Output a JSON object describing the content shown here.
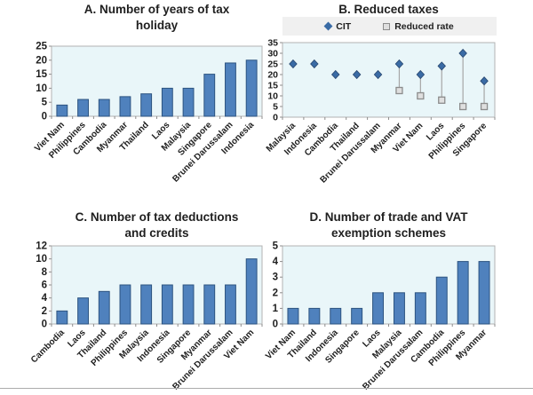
{
  "colors": {
    "bar_fill": "#4F81BD",
    "bar_border": "#2C5380",
    "plot_background": "#E9F6F9",
    "plot_border": "#B3B3B3",
    "tick_color": "#8C8C8C",
    "diamond_marker": "#3A6BA5",
    "diamond_border": "#28466E",
    "square_marker_fill": "#DFDFDF",
    "square_marker_border": "#8C8C8C",
    "connector_line": "#A6A6A6",
    "legend_background": "#F0F0F0",
    "text_color": "#1F1F1F",
    "divider_color": "#ABABAB"
  },
  "chart_data": [
    {
      "type": "bar",
      "panel": "A",
      "title": "A. Number of years of tax holiday",
      "title_lines": [
        "A. Number of years of tax",
        "holiday"
      ],
      "categories": [
        "Viet Nam",
        "Philippines",
        "Cambodia",
        "Myanmar",
        "Thailand",
        "Laos",
        "Malaysia",
        "Singapore",
        "Brunei Darussalam",
        "Indonesia"
      ],
      "values": [
        4,
        6,
        6,
        7,
        8,
        10,
        10,
        15,
        19,
        20
      ],
      "xlabel": "",
      "ylabel": "",
      "ylim": [
        0,
        25
      ],
      "ytick_step": 5,
      "grid": false,
      "legend_position": "none"
    },
    {
      "type": "scatter",
      "panel": "B",
      "title": "B. Reduced taxes",
      "title_lines": [
        "B. Reduced taxes"
      ],
      "categories": [
        "Malaysia",
        "Indonesia",
        "Cambodia",
        "Thailand",
        "Brunei Darussalam",
        "Myanmar",
        "Viet Nam",
        "Laos",
        "Philippines",
        "Singapore"
      ],
      "series": [
        {
          "name": "CIT",
          "marker": "diamond",
          "values": [
            25,
            25,
            20,
            20,
            20,
            25,
            20,
            24,
            30,
            17
          ]
        },
        {
          "name": "Reduced rate",
          "marker": "square",
          "values": [
            null,
            null,
            null,
            null,
            null,
            12.5,
            10,
            8,
            5,
            5
          ]
        }
      ],
      "connectors": true,
      "xlabel": "",
      "ylabel": "",
      "ylim": [
        0,
        35
      ],
      "ytick_step": 5,
      "grid": false,
      "legend_position": "top"
    },
    {
      "type": "bar",
      "panel": "C",
      "title": "C. Number of  tax deductions and credits",
      "title_lines": [
        "C. Number of  tax deductions",
        "and credits"
      ],
      "categories": [
        "Cambodia",
        "Laos",
        "Thailand",
        "Philippines",
        "Malaysia",
        "Indonesia",
        "Singapore",
        "Myanmar",
        "Brunei Darussalam",
        "Viet Nam"
      ],
      "values": [
        2,
        4,
        5,
        6,
        6,
        6,
        6,
        6,
        6,
        10
      ],
      "xlabel": "",
      "ylabel": "",
      "ylim": [
        0,
        12
      ],
      "ytick_step": 2,
      "grid": false,
      "legend_position": "none"
    },
    {
      "type": "bar",
      "panel": "D",
      "title": "D. Number of trade and VAT exemption schemes",
      "title_lines": [
        "D. Number of trade and VAT",
        "exemption schemes"
      ],
      "categories": [
        "Viet Nam",
        "Thailand",
        "Indonesia",
        "Singapore",
        "Laos",
        "Malaysia",
        "Brunei Darussalam",
        "Cambodia",
        "Philippines",
        "Myanmar"
      ],
      "values": [
        1,
        1,
        1,
        1,
        2,
        2,
        2,
        3,
        4,
        4
      ],
      "xlabel": "",
      "ylabel": "",
      "ylim": [
        0,
        5
      ],
      "ytick_step": 1,
      "grid": false,
      "legend_position": "none"
    }
  ]
}
